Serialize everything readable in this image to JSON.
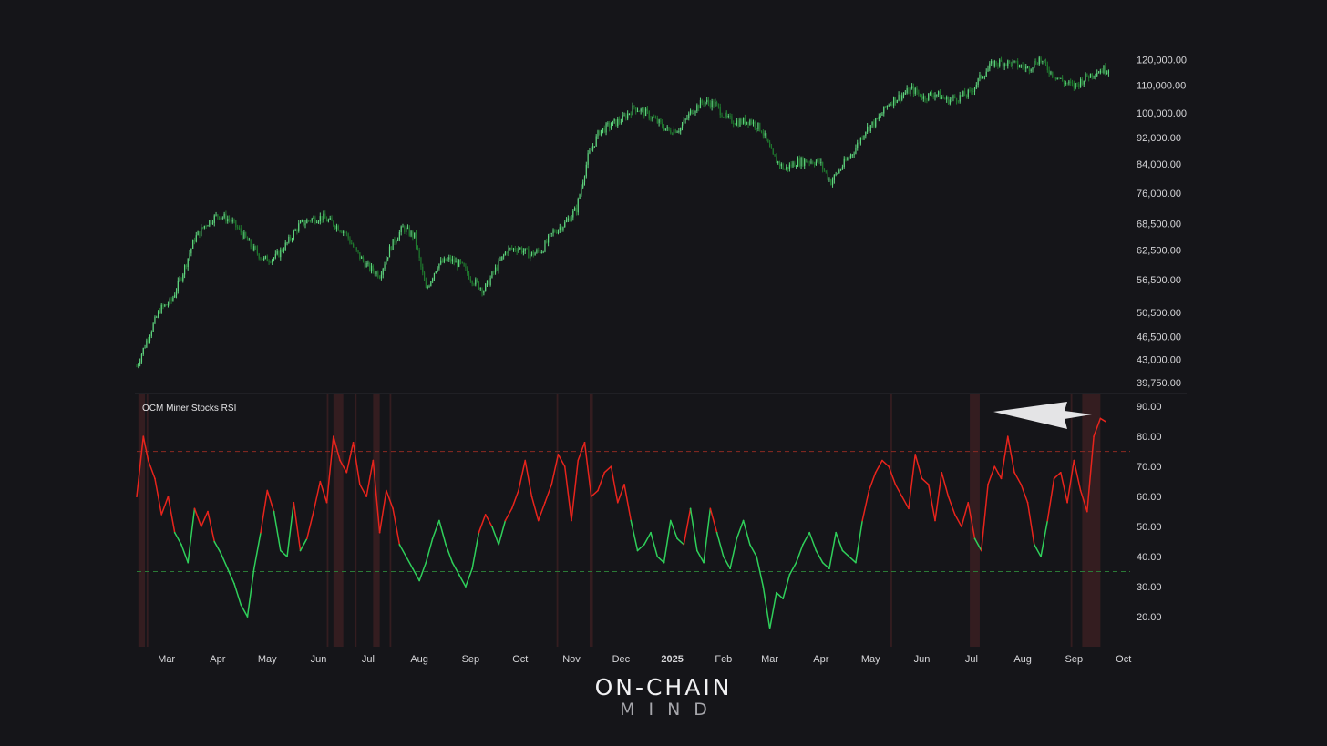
{
  "colors": {
    "background": "#151519",
    "candle_up": "#5fd67f",
    "candle_down": "#1f7a2e",
    "rsi_high": "#e8241c",
    "rsi_low": "#2fcf5a",
    "overbought_band": "#3a1f22",
    "overbought_line": "#8c2a22",
    "oversold_line": "#2b7a36",
    "axis_text": "#d6d6d9",
    "arrow": "#e4e4e6"
  },
  "watermark": {
    "line1": "ON-CHAIN",
    "line2": "MIND"
  },
  "chart_data": [
    {
      "type": "line",
      "description_series": "price candlesticks",
      "y_scale": "log",
      "y_ticks": [
        "120,000.00",
        "110,000.00",
        "100,000.00",
        "92,000.00",
        "84,000.00",
        "76,000.00",
        "68,500.00",
        "62,500.00",
        "56,500.00",
        "50,500.00",
        "46,500.00",
        "43,000.00",
        "39,750.00"
      ],
      "y_tick_values": [
        120000,
        110000,
        100000,
        92000,
        84000,
        76000,
        68500,
        62500,
        56500,
        50500,
        46500,
        43000,
        39750
      ],
      "ylim": [
        38500,
        128000
      ],
      "x_range": [
        "2024-02-12",
        "2025-09-22"
      ],
      "series": [
        {
          "x": [
            "2024-02-12",
            "2024-02-19",
            "2024-02-26",
            "2024-03-04",
            "2024-03-11",
            "2024-03-18",
            "2024-03-25",
            "2024-04-01",
            "2024-04-08",
            "2024-04-15",
            "2024-04-22",
            "2024-04-29",
            "2024-05-06",
            "2024-05-13",
            "2024-05-20",
            "2024-05-27",
            "2024-06-03",
            "2024-06-10",
            "2024-06-17",
            "2024-06-24",
            "2024-07-01",
            "2024-07-08",
            "2024-07-15",
            "2024-07-22",
            "2024-07-29",
            "2024-08-05",
            "2024-08-12",
            "2024-08-19",
            "2024-08-26",
            "2024-09-02",
            "2024-09-09",
            "2024-09-16",
            "2024-09-23",
            "2024-09-30",
            "2024-10-07",
            "2024-10-14",
            "2024-10-21",
            "2024-10-28",
            "2024-11-04",
            "2024-11-11",
            "2024-11-18",
            "2024-11-25",
            "2024-12-02",
            "2024-12-09",
            "2024-12-16",
            "2024-12-23",
            "2024-12-30",
            "2025-01-06",
            "2025-01-13",
            "2025-01-20",
            "2025-01-27",
            "2025-02-03",
            "2025-02-10",
            "2025-02-17",
            "2025-02-24",
            "2025-03-03",
            "2025-03-10",
            "2025-03-17",
            "2025-03-24",
            "2025-03-31",
            "2025-04-07",
            "2025-04-14",
            "2025-04-21",
            "2025-04-28",
            "2025-05-05",
            "2025-05-12",
            "2025-05-19",
            "2025-05-26",
            "2025-06-02",
            "2025-06-09",
            "2025-06-16",
            "2025-06-23",
            "2025-06-30",
            "2025-07-07",
            "2025-07-14",
            "2025-07-21",
            "2025-07-28",
            "2025-08-04",
            "2025-08-11",
            "2025-08-18",
            "2025-08-25",
            "2025-09-01",
            "2025-09-08",
            "2025-09-15",
            "2025-09-22"
          ],
          "values": [
            42000,
            46500,
            51000,
            52500,
            58000,
            65000,
            68500,
            70500,
            69500,
            66500,
            63000,
            60500,
            61000,
            64000,
            68000,
            69500,
            70000,
            68500,
            66500,
            62000,
            59000,
            57500,
            63500,
            67500,
            65500,
            54500,
            59500,
            60500,
            59500,
            56500,
            54500,
            58500,
            62500,
            63000,
            61500,
            62500,
            66500,
            68500,
            72000,
            86000,
            94000,
            96000,
            98000,
            102000,
            100000,
            97000,
            94000,
            95000,
            101000,
            104000,
            103000,
            98000,
            97000,
            97500,
            94500,
            86000,
            82500,
            84500,
            85000,
            84500,
            79000,
            83500,
            88000,
            94500,
            97500,
            103500,
            106000,
            108500,
            105500,
            107000,
            104500,
            105500,
            107000,
            113500,
            118500,
            119000,
            118000,
            116500,
            120500,
            115000,
            111500,
            109500,
            113000,
            115500,
            116500
          ]
        }
      ]
    },
    {
      "type": "line",
      "title": "OCM Miner Stocks RSI",
      "y_ticks": [
        "90.00",
        "80.00",
        "70.00",
        "60.00",
        "50.00",
        "40.00",
        "30.00",
        "20.00"
      ],
      "y_tick_values": [
        90,
        80,
        70,
        60,
        50,
        40,
        30,
        20
      ],
      "ylim": [
        10,
        94
      ],
      "overbought_level": 75,
      "oversold_level": 35,
      "x_ticks": [
        "Mar",
        "Apr",
        "May",
        "Jun",
        "Jul",
        "Aug",
        "Sep",
        "Oct",
        "Nov",
        "Dec",
        "2025",
        "Feb",
        "Mar",
        "Apr",
        "May",
        "Jun",
        "Jul",
        "Aug",
        "Sep",
        "Oct"
      ],
      "x_tick_dates": [
        "2024-03-01",
        "2024-04-01",
        "2024-05-01",
        "2024-06-01",
        "2024-07-01",
        "2024-08-01",
        "2024-09-01",
        "2024-10-01",
        "2024-11-01",
        "2024-12-01",
        "2025-01-01",
        "2025-02-01",
        "2025-03-01",
        "2025-04-01",
        "2025-05-01",
        "2025-06-01",
        "2025-07-01",
        "2025-08-01",
        "2025-09-01",
        "2025-10-01"
      ],
      "x_range": [
        "2024-02-12",
        "2025-10-05"
      ],
      "overbought_zones": [
        [
          "2024-02-13",
          "2024-02-17"
        ],
        [
          "2024-02-18",
          "2024-02-19"
        ],
        [
          "2024-06-06",
          "2024-06-07"
        ],
        [
          "2024-06-10",
          "2024-06-16"
        ],
        [
          "2024-06-23",
          "2024-06-24"
        ],
        [
          "2024-07-04",
          "2024-07-08"
        ],
        [
          "2024-07-14",
          "2024-07-15"
        ],
        [
          "2024-10-23",
          "2024-10-24"
        ],
        [
          "2024-11-12",
          "2024-11-14"
        ],
        [
          "2025-05-13",
          "2025-05-14"
        ],
        [
          "2025-06-30",
          "2025-07-06"
        ],
        [
          "2025-08-30",
          "2025-08-31"
        ],
        [
          "2025-09-06",
          "2025-09-17"
        ]
      ],
      "series": [
        {
          "x": [
            "2024-02-12",
            "2024-02-16",
            "2024-02-19",
            "2024-02-23",
            "2024-02-27",
            "2024-03-02",
            "2024-03-06",
            "2024-03-10",
            "2024-03-14",
            "2024-03-18",
            "2024-03-22",
            "2024-03-26",
            "2024-03-30",
            "2024-04-03",
            "2024-04-07",
            "2024-04-11",
            "2024-04-15",
            "2024-04-19",
            "2024-04-23",
            "2024-04-27",
            "2024-05-01",
            "2024-05-05",
            "2024-05-09",
            "2024-05-13",
            "2024-05-17",
            "2024-05-21",
            "2024-05-25",
            "2024-05-29",
            "2024-06-02",
            "2024-06-06",
            "2024-06-10",
            "2024-06-14",
            "2024-06-18",
            "2024-06-22",
            "2024-06-26",
            "2024-06-30",
            "2024-07-04",
            "2024-07-08",
            "2024-07-12",
            "2024-07-16",
            "2024-07-20",
            "2024-07-24",
            "2024-07-28",
            "2024-08-01",
            "2024-08-05",
            "2024-08-09",
            "2024-08-13",
            "2024-08-17",
            "2024-08-21",
            "2024-08-25",
            "2024-08-29",
            "2024-09-02",
            "2024-09-06",
            "2024-09-10",
            "2024-09-14",
            "2024-09-18",
            "2024-09-22",
            "2024-09-26",
            "2024-09-30",
            "2024-10-04",
            "2024-10-08",
            "2024-10-12",
            "2024-10-16",
            "2024-10-20",
            "2024-10-24",
            "2024-10-28",
            "2024-11-01",
            "2024-11-05",
            "2024-11-09",
            "2024-11-13",
            "2024-11-17",
            "2024-11-21",
            "2024-11-25",
            "2024-11-29",
            "2024-12-03",
            "2024-12-07",
            "2024-12-11",
            "2024-12-15",
            "2024-12-19",
            "2024-12-23",
            "2024-12-27",
            "2024-12-31",
            "2025-01-04",
            "2025-01-08",
            "2025-01-12",
            "2025-01-16",
            "2025-01-20",
            "2025-01-24",
            "2025-01-28",
            "2025-02-01",
            "2025-02-05",
            "2025-02-09",
            "2025-02-13",
            "2025-02-17",
            "2025-02-21",
            "2025-02-25",
            "2025-03-01",
            "2025-03-05",
            "2025-03-09",
            "2025-03-13",
            "2025-03-17",
            "2025-03-21",
            "2025-03-25",
            "2025-03-29",
            "2025-04-02",
            "2025-04-06",
            "2025-04-10",
            "2025-04-14",
            "2025-04-18",
            "2025-04-22",
            "2025-04-26",
            "2025-04-30",
            "2025-05-04",
            "2025-05-08",
            "2025-05-12",
            "2025-05-16",
            "2025-05-20",
            "2025-05-24",
            "2025-05-28",
            "2025-06-01",
            "2025-06-05",
            "2025-06-09",
            "2025-06-13",
            "2025-06-17",
            "2025-06-21",
            "2025-06-25",
            "2025-06-29",
            "2025-07-03",
            "2025-07-07",
            "2025-07-11",
            "2025-07-15",
            "2025-07-19",
            "2025-07-23",
            "2025-07-27",
            "2025-07-31",
            "2025-08-04",
            "2025-08-08",
            "2025-08-12",
            "2025-08-16",
            "2025-08-20",
            "2025-08-24",
            "2025-08-28",
            "2025-09-01",
            "2025-09-05",
            "2025-09-09",
            "2025-09-13",
            "2025-09-17",
            "2025-09-20"
          ],
          "values": [
            60,
            80,
            72,
            66,
            54,
            60,
            48,
            44,
            38,
            56,
            50,
            55,
            45,
            41,
            36,
            31,
            24,
            20,
            36,
            48,
            62,
            55,
            42,
            40,
            58,
            42,
            46,
            55,
            65,
            58,
            80,
            72,
            68,
            78,
            64,
            60,
            72,
            48,
            62,
            56,
            44,
            40,
            36,
            32,
            38,
            46,
            52,
            44,
            38,
            34,
            30,
            36,
            48,
            54,
            50,
            44,
            52,
            56,
            62,
            72,
            60,
            52,
            58,
            64,
            74,
            70,
            52,
            72,
            78,
            60,
            62,
            68,
            70,
            58,
            64,
            52,
            42,
            44,
            48,
            40,
            38,
            52,
            46,
            44,
            56,
            42,
            38,
            56,
            48,
            40,
            36,
            46,
            52,
            44,
            40,
            30,
            16,
            28,
            26,
            34,
            38,
            44,
            48,
            42,
            38,
            36,
            48,
            42,
            40,
            38,
            52,
            62,
            68,
            72,
            70,
            64,
            60,
            56,
            74,
            66,
            64,
            52,
            68,
            60,
            54,
            50,
            58,
            46,
            42,
            64,
            70,
            66,
            80,
            68,
            64,
            58,
            44,
            40,
            52,
            66,
            68,
            58,
            72,
            62,
            55,
            80,
            86,
            85
          ],
          "zone_threshold": 50
        }
      ]
    }
  ]
}
